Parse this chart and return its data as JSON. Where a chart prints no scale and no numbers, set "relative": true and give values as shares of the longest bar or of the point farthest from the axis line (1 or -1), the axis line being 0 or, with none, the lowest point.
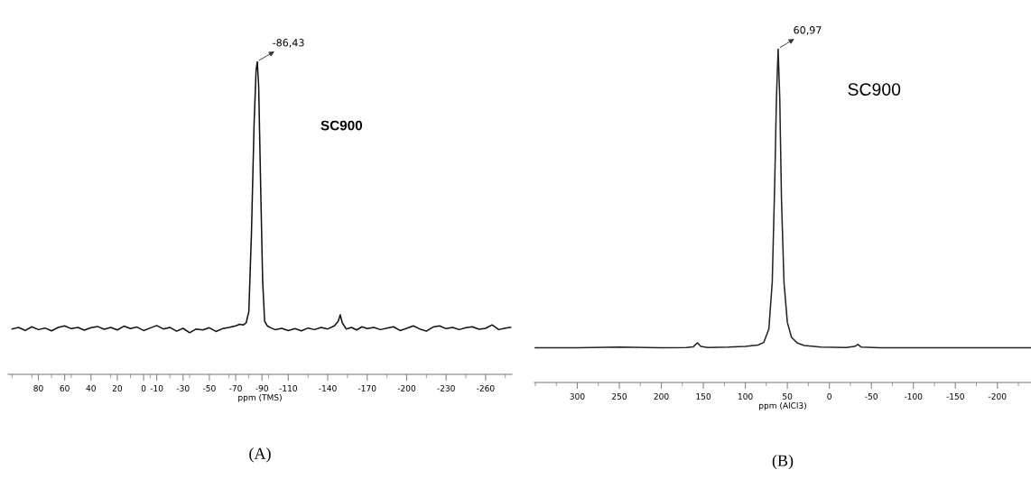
{
  "chart_data": [
    {
      "type": "line",
      "relative": true,
      "xlabel": "ppm (TMS)",
      "xlim": [
        103,
        -280
      ],
      "xticks": [
        80,
        60,
        40,
        20,
        0,
        -10,
        -30,
        -50,
        -70,
        -90,
        -110,
        -140,
        -170,
        -200,
        -230,
        -260
      ],
      "series": [
        {
          "color": "#111111",
          "x": [
            100,
            95,
            90,
            85,
            80,
            75,
            70,
            65,
            60,
            55,
            50,
            45,
            40,
            35,
            30,
            25,
            20,
            15,
            10,
            5,
            0,
            -5,
            -10,
            -15,
            -20,
            -25,
            -30,
            -35,
            -40,
            -45,
            -50,
            -55,
            -60,
            -65,
            -70,
            -73,
            -76,
            -78,
            -80,
            -82,
            -84,
            -85.5,
            -86.43,
            -87.5,
            -89,
            -90.5,
            -92,
            -94,
            -97,
            -100,
            -105,
            -110,
            -115,
            -120,
            -125,
            -130,
            -135,
            -140,
            -145,
            -148,
            -149.5,
            -151,
            -154,
            -158,
            -162,
            -166,
            -170,
            -175,
            -180,
            -185,
            -190,
            -195,
            -200,
            -205,
            -210,
            -215,
            -220,
            -225,
            -230,
            -235,
            -240,
            -245,
            -250,
            -255,
            -260,
            -265,
            -270,
            -275,
            -279
          ],
          "values": [
            0.145,
            0.15,
            0.14,
            0.152,
            0.143,
            0.148,
            0.139,
            0.15,
            0.155,
            0.146,
            0.15,
            0.141,
            0.149,
            0.153,
            0.144,
            0.15,
            0.142,
            0.154,
            0.146,
            0.151,
            0.14,
            0.148,
            0.156,
            0.145,
            0.15,
            0.138,
            0.147,
            0.133,
            0.145,
            0.142,
            0.149,
            0.137,
            0.146,
            0.15,
            0.155,
            0.16,
            0.158,
            0.165,
            0.2,
            0.45,
            0.8,
            0.97,
            1,
            0.92,
            0.6,
            0.3,
            0.17,
            0.155,
            0.148,
            0.143,
            0.147,
            0.14,
            0.146,
            0.139,
            0.148,
            0.143,
            0.15,
            0.145,
            0.155,
            0.17,
            0.19,
            0.165,
            0.145,
            0.15,
            0.142,
            0.152,
            0.146,
            0.15,
            0.143,
            0.148,
            0.152,
            0.14,
            0.147,
            0.155,
            0.145,
            0.138,
            0.151,
            0.155,
            0.146,
            0.15,
            0.143,
            0.149,
            0.152,
            0.144,
            0.147,
            0.158,
            0.143,
            0.148,
            0.15
          ]
        }
      ],
      "annotations": [
        {
          "text": "-86,43",
          "x": -86.43,
          "y": 1
        },
        "SC900",
        "(A)"
      ]
    },
    {
      "type": "line",
      "relative": true,
      "xlabel": "ppm (AlCl3)",
      "xlim": [
        351,
        -240
      ],
      "xticks": [
        300,
        250,
        200,
        150,
        100,
        50,
        0,
        -50,
        -100,
        -150,
        -200
      ],
      "series": [
        {
          "color": "#222222",
          "x": [
            350,
            300,
            250,
            200,
            170,
            162,
            157,
            153,
            145,
            120,
            100,
            85,
            78,
            72,
            68,
            65,
            63,
            60.97,
            59,
            57,
            54,
            50,
            45,
            38,
            30,
            10,
            -20,
            -30,
            -34,
            -38,
            -60,
            -100,
            -150,
            -200,
            -240
          ],
          "values": [
            0.104,
            0.104,
            0.106,
            0.104,
            0.105,
            0.107,
            0.119,
            0.108,
            0.105,
            0.106,
            0.108,
            0.112,
            0.12,
            0.16,
            0.3,
            0.6,
            0.85,
            1,
            0.85,
            0.55,
            0.3,
            0.18,
            0.135,
            0.118,
            0.111,
            0.106,
            0.105,
            0.108,
            0.114,
            0.106,
            0.104,
            0.104,
            0.104,
            0.104,
            0.104
          ]
        }
      ],
      "annotations": [
        {
          "text": "60,97",
          "x": 60.97,
          "y": 1
        },
        "SC900",
        "(B)"
      ]
    }
  ]
}
